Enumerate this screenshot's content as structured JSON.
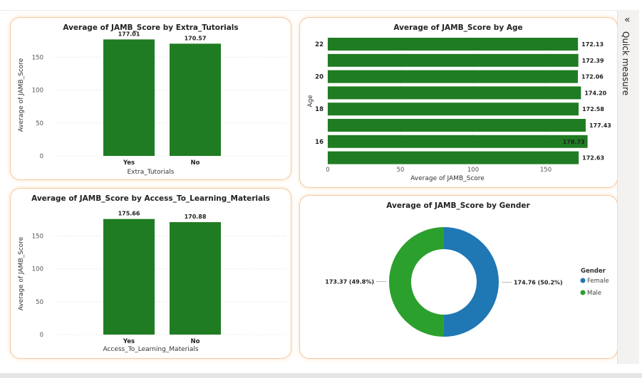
{
  "pane": {
    "collapse_glyph": "«",
    "label": "Quick measure"
  },
  "colors": {
    "bar": "#207c22",
    "female": "#1f77b4",
    "male": "#2ca02c",
    "card_border": "#f6c9a0"
  },
  "chart_data": [
    {
      "id": "tutorials",
      "type": "bar",
      "title": "Average of JAMB_Score by Extra_Tutorials",
      "xlabel": "Extra_Tutorials",
      "ylabel": "Average of JAMB_Score",
      "categories": [
        "Yes",
        "No"
      ],
      "values": [
        177.01,
        170.57
      ],
      "labels": [
        "177.01",
        "170.57"
      ],
      "yticks": [
        0,
        50,
        100,
        150
      ],
      "ylim": [
        0,
        185
      ],
      "grid": true
    },
    {
      "id": "age",
      "type": "bar",
      "orientation": "horizontal",
      "title": "Average of JAMB_Score by Age",
      "xlabel": "Average of JAMB_Score",
      "ylabel": "Age",
      "categories": [
        "22",
        "",
        "20",
        "",
        "18",
        "",
        "16",
        ""
      ],
      "values": [
        172.13,
        172.39,
        172.06,
        174.2,
        172.58,
        177.43,
        178.73,
        172.63
      ],
      "labels": [
        "172.13",
        "172.39",
        "172.06",
        "174.20",
        "172.58",
        "177.43",
        "178.73",
        "172.63"
      ],
      "xticks": [
        0,
        50,
        100,
        150
      ],
      "xlim": [
        0,
        185
      ],
      "grid": true
    },
    {
      "id": "materials",
      "type": "bar",
      "title": "Average of JAMB_Score by Access_To_Learning_Materials",
      "xlabel": "Access_To_Learning_Materials",
      "ylabel": "Average of JAMB_Score",
      "categories": [
        "Yes",
        "No"
      ],
      "values": [
        175.66,
        170.88
      ],
      "labels": [
        "175.66",
        "170.88"
      ],
      "yticks": [
        0,
        50,
        100,
        150
      ],
      "ylim": [
        0,
        185
      ],
      "grid": true
    },
    {
      "id": "gender",
      "type": "pie",
      "donut": true,
      "title": "Average of JAMB_Score by Gender",
      "legend_title": "Gender",
      "legend_position": "right",
      "slices": [
        {
          "name": "Female",
          "value": 174.76,
          "percent": 50.2,
          "label": "174.76 (50.2%)"
        },
        {
          "name": "Male",
          "value": 173.37,
          "percent": 49.8,
          "label": "173.37 (49.8%)"
        }
      ]
    }
  ]
}
